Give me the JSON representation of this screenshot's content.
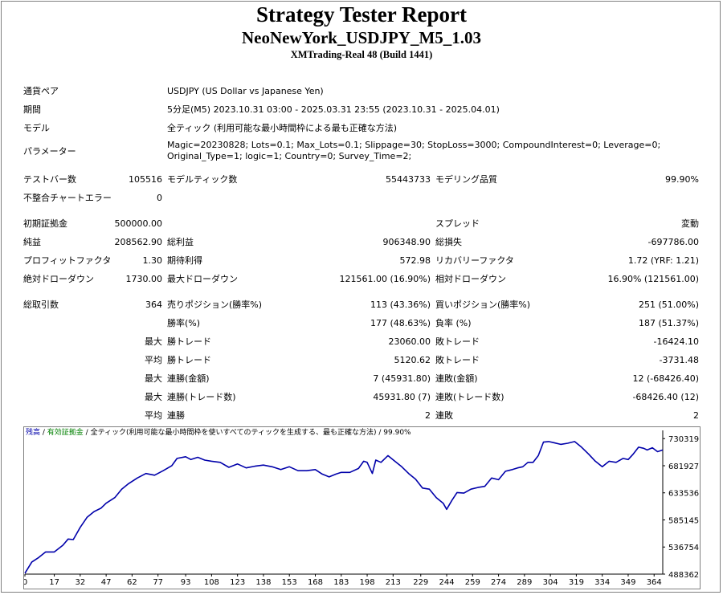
{
  "header": {
    "title": "Strategy Tester Report",
    "subtitle": "NeoNewYork_USDJPY_M5_1.03",
    "server": "XMTrading-Real 48 (Build 1441)"
  },
  "info": {
    "pair_label": "通貨ペア",
    "pair": "USDJPY (US Dollar vs Japanese Yen)",
    "period_label": "期間",
    "period": "5分足(M5) 2023.10.31 03:00 - 2025.03.31 23:55 (2023.10.31 - 2025.04.01)",
    "model_label": "モデル",
    "model": "全ティック (利用可能な最小時間枠による最も正確な方法)",
    "params_label": "パラメーター",
    "params": "Magic=20230828; Lots=0.1; Max_Lots=0.1; Slippage=30; StopLoss=3000; CompoundInterest=0; Leverage=0; Original_Type=1; logic=1; Country=0; Survey_Time=2;"
  },
  "stats": {
    "bars_label": "テストバー数",
    "bars": "105516",
    "ticks_label": "モデルティック数",
    "ticks": "55443733",
    "quality_label": "モデリング品質",
    "quality": "99.90%",
    "errors_label": "不整合チャートエラー",
    "errors": "0",
    "deposit_label": "初期証拠金",
    "deposit": "500000.00",
    "spread_label": "スプレッド",
    "spread": "変動",
    "net_label": "純益",
    "net": "208562.90",
    "gross_profit_label": "総利益",
    "gross_profit": "906348.90",
    "gross_loss_label": "総損失",
    "gross_loss": "-697786.00",
    "pf_label": "プロフィットファクタ",
    "pf": "1.30",
    "payoff_label": "期待利得",
    "payoff": "572.98",
    "rf_label": "リカバリーファクタ",
    "rf": "1.72 (YRF: 1.21)",
    "abs_dd_label": "絶対ドローダウン",
    "abs_dd": "1730.00",
    "max_dd_label": "最大ドローダウン",
    "max_dd": "121561.00 (16.90%)",
    "rel_dd_label": "相対ドローダウン",
    "rel_dd": "16.90% (121561.00)",
    "trades_label": "総取引数",
    "trades": "364",
    "short_label": "売りポジション(勝率%)",
    "short": "113 (43.36%)",
    "long_label": "買いポジション(勝率%)",
    "long": "251 (51.00%)",
    "win_label": "勝率(%)",
    "win": "177 (48.63%)",
    "loss_label": "負率 (%)",
    "loss": "187 (51.37%)",
    "max_label": "最大",
    "avg_label": "平均",
    "max_win_label": "勝トレード",
    "max_win": "23060.00",
    "max_loss_label": "敗トレード",
    "max_loss": "-16424.10",
    "avg_win_label": "勝トレード",
    "avg_win": "5120.62",
    "avg_loss_label": "敗トレード",
    "avg_loss": "-3731.48",
    "cons_win_amt_label": "連勝(金額)",
    "cons_win_amt": "7 (45931.80)",
    "cons_loss_amt_label": "連敗(金額)",
    "cons_loss_amt": "12 (-68426.40)",
    "cons_win_cnt_label": "連勝(トレード数)",
    "cons_win_cnt": "45931.80 (7)",
    "cons_loss_cnt_label": "連敗(トレード数)",
    "cons_loss_cnt": "-68426.40 (12)",
    "avg_cons_win_label": "連勝",
    "avg_cons_win": "2",
    "avg_cons_loss_label": "連敗",
    "avg_cons_loss": "2"
  },
  "legend": {
    "balance": "残高",
    "sep1": " / ",
    "equity": "有効証拠金",
    "sep2": " / ",
    "model": "全ティック(利用可能な最小時間枠を使いすべてのティックを生成する、最も正確な方法)",
    "quality": " / 99.90%",
    "balance_color": "#0000aa",
    "equity_color": "#008000"
  },
  "chart_data": {
    "type": "line",
    "x_ticks": [
      0,
      17,
      32,
      47,
      62,
      77,
      93,
      108,
      123,
      138,
      153,
      168,
      183,
      198,
      213,
      229,
      244,
      259,
      274,
      289,
      304,
      319,
      334,
      349,
      364
    ],
    "y_ticks": [
      488362,
      536754,
      585145,
      633536,
      681927,
      730319
    ],
    "ylim": [
      488362,
      745000
    ],
    "xlim": [
      0,
      369
    ],
    "series": [
      {
        "color": "#0000aa",
        "x": [
          0,
          4,
          8,
          12,
          17,
          22,
          25,
          28,
          32,
          36,
          40,
          44,
          47,
          52,
          56,
          60,
          65,
          70,
          75,
          80,
          85,
          88,
          93,
          96,
          100,
          104,
          108,
          113,
          118,
          123,
          128,
          133,
          138,
          143,
          148,
          153,
          158,
          163,
          168,
          172,
          176,
          180,
          183,
          188,
          193,
          196,
          198,
          201,
          203,
          206,
          210,
          214,
          218,
          222,
          226,
          230,
          234,
          238,
          242,
          244,
          247,
          250,
          254,
          258,
          262,
          266,
          270,
          274,
          278,
          282,
          285,
          288,
          291,
          294,
          297,
          300,
          303,
          306,
          310,
          314,
          318,
          322,
          326,
          330,
          334,
          338,
          342,
          346,
          349,
          352,
          355,
          358,
          360,
          363,
          366,
          369
        ],
        "y": [
          490000,
          510000,
          518000,
          528000,
          528000,
          540000,
          551000,
          550000,
          572000,
          590000,
          600000,
          606000,
          615000,
          625000,
          640000,
          650000,
          660000,
          668000,
          665000,
          673000,
          682000,
          695000,
          698000,
          693000,
          697000,
          692000,
          690000,
          688000,
          679000,
          685000,
          678000,
          681000,
          683000,
          680000,
          675000,
          680000,
          673000,
          673000,
          675000,
          667000,
          662000,
          667000,
          670000,
          670000,
          677000,
          690000,
          688000,
          668000,
          692000,
          688000,
          700000,
          690000,
          680000,
          668000,
          658000,
          642000,
          640000,
          625000,
          615000,
          604000,
          620000,
          634000,
          633000,
          640000,
          643000,
          645000,
          660000,
          657000,
          672000,
          675000,
          678000,
          680000,
          688000,
          688000,
          700000,
          724000,
          725000,
          723000,
          720000,
          722000,
          725000,
          715000,
          703000,
          690000,
          680000,
          690000,
          688000,
          695000,
          693000,
          703000,
          715000,
          713000,
          710000,
          714000,
          707000,
          710000
        ]
      }
    ]
  }
}
